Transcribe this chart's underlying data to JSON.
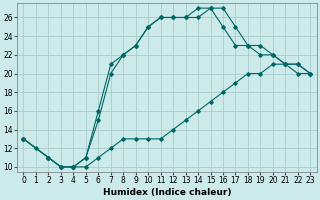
{
  "xlabel": "Humidex (Indice chaleur)",
  "bg_color": "#cceaea",
  "grid_color": "#aacccc",
  "line_color": "#006666",
  "xlim": [
    -0.5,
    23.5
  ],
  "ylim": [
    9.5,
    27.5
  ],
  "xticks": [
    0,
    1,
    2,
    3,
    4,
    5,
    6,
    7,
    8,
    9,
    10,
    11,
    12,
    13,
    14,
    15,
    16,
    17,
    18,
    19,
    20,
    21,
    22,
    23
  ],
  "yticks": [
    10,
    12,
    14,
    16,
    18,
    20,
    22,
    24,
    26
  ],
  "line1_x": [
    0,
    1,
    2,
    3,
    4,
    5,
    6,
    7,
    8,
    9,
    10,
    11,
    12,
    13,
    14,
    15,
    16,
    17,
    18,
    19,
    20,
    21,
    22,
    23
  ],
  "line1_y": [
    13,
    12,
    11,
    10,
    10,
    10,
    11,
    12,
    13,
    13,
    13,
    13,
    14,
    15,
    16,
    17,
    18,
    19,
    20,
    20,
    21,
    21,
    20,
    20
  ],
  "line2_x": [
    0,
    2,
    3,
    4,
    5,
    6,
    7,
    8,
    9,
    10,
    11,
    12,
    13,
    14,
    15,
    16,
    17,
    18,
    19,
    20,
    21,
    22,
    23
  ],
  "line2_y": [
    13,
    11,
    10,
    10,
    11,
    15,
    20,
    22,
    23,
    25,
    26,
    26,
    26,
    27,
    27,
    25,
    23,
    23,
    23,
    22,
    21,
    21,
    20
  ],
  "line3_x": [
    0,
    2,
    3,
    4,
    5,
    6,
    7,
    8,
    9,
    10,
    11,
    12,
    13,
    14,
    15,
    16,
    17,
    18,
    19,
    20,
    21,
    22,
    23
  ],
  "line3_y": [
    13,
    11,
    10,
    10,
    11,
    16,
    21,
    22,
    23,
    25,
    26,
    26,
    26,
    26,
    27,
    27,
    25,
    23,
    22,
    22,
    21,
    21,
    20
  ],
  "xlabel_fontsize": 6.5,
  "tick_fontsize": 5.5
}
